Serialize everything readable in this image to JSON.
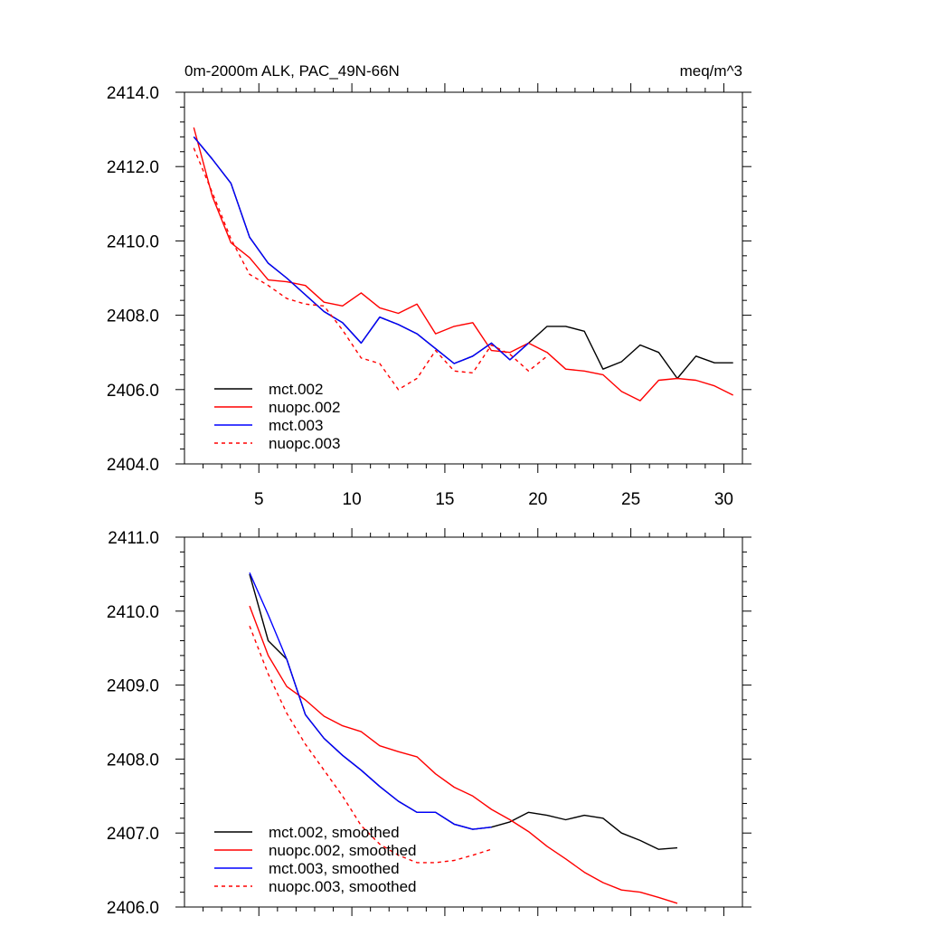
{
  "colors": {
    "mct002": "#000000",
    "nuopc002": "#ff0000",
    "mct003": "#0000ff",
    "nuopc003": "#ff0000"
  },
  "chart_data": [
    {
      "type": "line",
      "title": "0m-2000m ALK, PAC_49N-66N",
      "units": "meq/m^3",
      "xlim": [
        1,
        31
      ],
      "ylim": [
        2404,
        2414
      ],
      "x_ticks": [
        5,
        10,
        15,
        20,
        25,
        30
      ],
      "x_tick_labels": [
        "5",
        "10",
        "15",
        "20",
        "25",
        "30"
      ],
      "y_ticks": [
        2404,
        2406,
        2408,
        2410,
        2412,
        2414
      ],
      "y_tick_labels": [
        "2404.0",
        "2406.0",
        "2408.0",
        "2410.0",
        "2412.0",
        "2414.0"
      ],
      "legend_position": "bottom-left",
      "series": [
        {
          "name": "mct.002",
          "color": "#000000",
          "dash": false,
          "x": [
            1.5,
            2.5,
            3.5,
            4.5,
            5.5,
            6.5,
            7.5,
            8.5,
            9.5,
            10.5,
            11.5,
            12.5,
            13.5,
            14.5,
            15.5,
            16.5,
            17.5,
            18.5,
            19.5,
            20.5,
            21.5,
            22.5,
            23.5,
            24.5,
            25.5,
            26.5,
            27.5,
            28.5,
            29.5,
            30.5
          ],
          "y": [
            2412.8,
            2412.2,
            2411.55,
            2410.1,
            2409.4,
            2409.0,
            2408.55,
            2408.1,
            2407.8,
            2407.25,
            2407.95,
            2407.75,
            2407.5,
            2407.1,
            2406.7,
            2406.9,
            2407.25,
            2406.8,
            2407.25,
            2407.7,
            2407.7,
            2407.57,
            2406.55,
            2406.75,
            2407.2,
            2407.0,
            2406.3,
            2406.9,
            2406.72,
            2406.72
          ]
        },
        {
          "name": "nuopc.002",
          "color": "#ff0000",
          "dash": false,
          "x": [
            1.5,
            2.5,
            3.5,
            4.5,
            5.5,
            6.5,
            7.5,
            8.5,
            9.5,
            10.5,
            11.5,
            12.5,
            13.5,
            14.5,
            15.5,
            16.5,
            17.5,
            18.5,
            19.5,
            20.5,
            21.5,
            22.5,
            23.5,
            24.5,
            25.5,
            26.5,
            27.5,
            28.5,
            29.5,
            30.5
          ],
          "y": [
            2413.05,
            2411.2,
            2409.95,
            2409.55,
            2408.95,
            2408.9,
            2408.8,
            2408.35,
            2408.25,
            2408.6,
            2408.2,
            2408.05,
            2408.3,
            2407.5,
            2407.7,
            2407.8,
            2407.05,
            2407.0,
            2407.25,
            2407.0,
            2406.55,
            2406.5,
            2406.4,
            2405.95,
            2405.7,
            2406.25,
            2406.3,
            2406.25,
            2406.1,
            2405.85
          ]
        },
        {
          "name": "mct.003",
          "color": "#0000ff",
          "dash": false,
          "x": [
            1.5,
            2.5,
            3.5,
            4.5,
            5.5,
            6.5,
            7.5,
            8.5,
            9.5,
            10.5,
            11.5,
            12.5,
            13.5,
            14.5,
            15.5,
            16.5,
            17.5,
            18.5,
            19.5
          ],
          "y": [
            2412.8,
            2412.2,
            2411.55,
            2410.1,
            2409.4,
            2409.0,
            2408.55,
            2408.1,
            2407.8,
            2407.25,
            2407.95,
            2407.75,
            2407.5,
            2407.1,
            2406.7,
            2406.9,
            2407.25,
            2406.8,
            2407.25
          ]
        },
        {
          "name": "nuopc.003",
          "color": "#ff0000",
          "dash": true,
          "x": [
            1.5,
            2.5,
            3.5,
            4.5,
            5.5,
            6.5,
            7.5,
            8.5,
            9.5,
            10.5,
            11.5,
            12.5,
            13.5,
            14.5,
            15.5,
            16.5,
            17.5,
            18.5,
            19.5,
            20.5
          ],
          "y": [
            2412.5,
            2411.3,
            2410.05,
            2409.1,
            2408.8,
            2408.45,
            2408.3,
            2408.25,
            2407.6,
            2406.85,
            2406.7,
            2406.0,
            2406.3,
            2407.05,
            2406.5,
            2406.45,
            2407.2,
            2406.95,
            2406.5,
            2406.9
          ]
        }
      ]
    },
    {
      "type": "line",
      "title": "",
      "xlim": [
        1,
        31
      ],
      "ylim": [
        2406,
        2411
      ],
      "x_ticks": [
        5,
        10,
        15,
        20,
        25,
        30
      ],
      "x_tick_labels": [],
      "y_ticks": [
        2406,
        2407,
        2408,
        2409,
        2410,
        2411
      ],
      "y_tick_labels": [
        "2406.0",
        "2407.0",
        "2408.0",
        "2409.0",
        "2410.0",
        "2411.0"
      ],
      "legend_position": "bottom-left",
      "series": [
        {
          "name": "mct.002, smoothed",
          "color": "#000000",
          "dash": false,
          "x": [
            4.5,
            5.5,
            6.5,
            7.5,
            8.5,
            9.5,
            10.5,
            11.5,
            12.5,
            13.5,
            14.5,
            15.5,
            16.5,
            17.5,
            18.5,
            19.5,
            20.5,
            21.5,
            22.5,
            23.5,
            24.5,
            25.5,
            26.5,
            27.5
          ],
          "y": [
            2410.5,
            2409.6,
            2409.35,
            2408.6,
            2408.28,
            2408.05,
            2407.85,
            2407.63,
            2407.43,
            2407.28,
            2407.28,
            2407.12,
            2407.05,
            2407.08,
            2407.15,
            2407.28,
            2407.24,
            2407.18,
            2407.24,
            2407.2,
            2407.0,
            2406.9,
            2406.78,
            2406.8
          ]
        },
        {
          "name": "nuopc.002, smoothed",
          "color": "#ff0000",
          "dash": false,
          "x": [
            4.5,
            5.5,
            6.5,
            7.5,
            8.5,
            9.5,
            10.5,
            11.5,
            12.5,
            13.5,
            14.5,
            15.5,
            16.5,
            17.5,
            18.5,
            19.5,
            20.5,
            21.5,
            22.5,
            23.5,
            24.5,
            25.5,
            26.5,
            27.5
          ],
          "y": [
            2410.07,
            2409.4,
            2408.98,
            2408.8,
            2408.58,
            2408.45,
            2408.37,
            2408.18,
            2408.1,
            2408.03,
            2407.8,
            2407.62,
            2407.5,
            2407.32,
            2407.18,
            2407.02,
            2406.82,
            2406.65,
            2406.47,
            2406.33,
            2406.23,
            2406.2,
            2406.13,
            2406.05
          ]
        },
        {
          "name": "mct.003, smoothed",
          "color": "#0000ff",
          "dash": false,
          "x": [
            4.5,
            5.5,
            6.5,
            7.5,
            8.5,
            9.5,
            10.5,
            11.5,
            12.5,
            13.5,
            14.5,
            15.5,
            16.5,
            17.5
          ],
          "y": [
            2410.52,
            2409.95,
            2409.35,
            2408.6,
            2408.28,
            2408.05,
            2407.85,
            2407.63,
            2407.43,
            2407.28,
            2407.28,
            2407.12,
            2407.05,
            2407.08
          ]
        },
        {
          "name": "nuopc.003, smoothed",
          "color": "#ff0000",
          "dash": true,
          "x": [
            4.5,
            5.5,
            6.5,
            7.5,
            8.5,
            9.5,
            10.5,
            11.5,
            12.5,
            13.5,
            14.5,
            15.5,
            16.5,
            17.5
          ],
          "y": [
            2409.8,
            2409.15,
            2408.62,
            2408.2,
            2407.85,
            2407.5,
            2407.1,
            2406.85,
            2406.7,
            2406.6,
            2406.6,
            2406.63,
            2406.7,
            2406.78
          ]
        }
      ]
    }
  ]
}
